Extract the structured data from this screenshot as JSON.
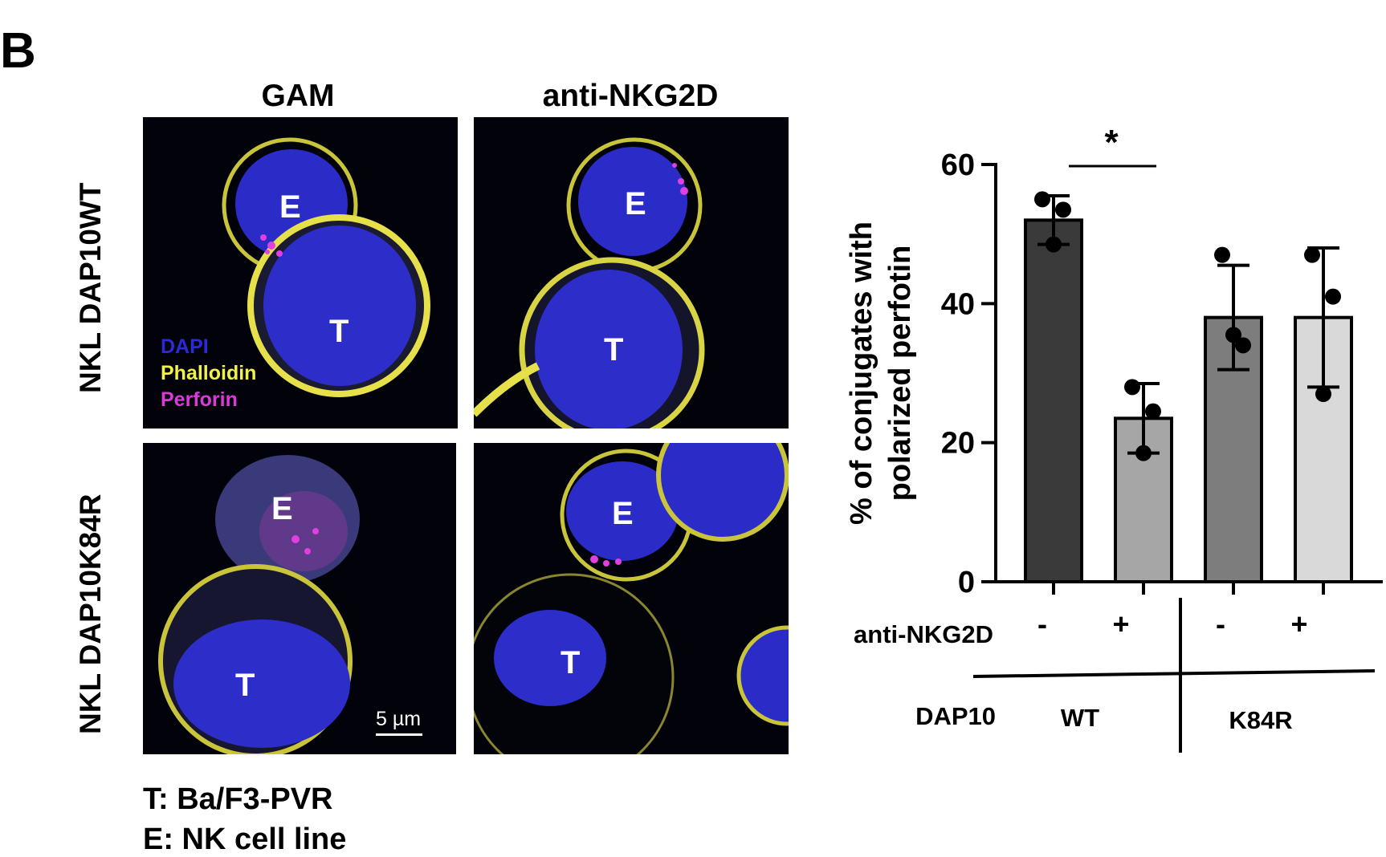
{
  "panel_letter": "B",
  "micrographs": {
    "columns": [
      "GAM",
      "anti-NKG2D"
    ],
    "rows": [
      "NKL DAP10WT",
      "NKL DAP10K84R"
    ],
    "cell_labels": {
      "effector": "E",
      "target": "T"
    },
    "legend": [
      {
        "label": "DAPI",
        "color": "#2a2ad8"
      },
      {
        "label": "Phalloidin",
        "color": "#f2f04a"
      },
      {
        "label": "Perforin",
        "color": "#d93bd9"
      }
    ],
    "scale_bar_label": "5 µm"
  },
  "key": [
    "T: Ba/F3-PVR",
    "E: NK cell line"
  ],
  "chart_data": {
    "type": "bar",
    "ylabel_line1": "% of conjugates with",
    "ylabel_line2": "polarized perfotin",
    "ylim": [
      0,
      60
    ],
    "yticks": [
      "0",
      "20",
      "40",
      "60"
    ],
    "categories": [
      "WT -",
      "WT +",
      "K84R -",
      "K84R +"
    ],
    "values": [
      52,
      23.5,
      38,
      38
    ],
    "error": [
      3.5,
      5,
      7.5,
      10
    ],
    "points": [
      [
        55,
        53.5,
        48.5
      ],
      [
        28,
        24.5,
        18.5
      ],
      [
        47,
        34,
        35.5
      ],
      [
        47,
        41,
        27
      ]
    ],
    "bar_colors": [
      "#3a3a3a",
      "#a6a6a6",
      "#7d7d7d",
      "#d9d9d9"
    ],
    "significance": "*",
    "x_table": {
      "row1_label": "anti-NKG2D",
      "row1_values": [
        "-",
        "+",
        "-",
        "+"
      ],
      "row2_label": "DAP10",
      "groups": [
        "WT",
        "K84R"
      ]
    }
  }
}
